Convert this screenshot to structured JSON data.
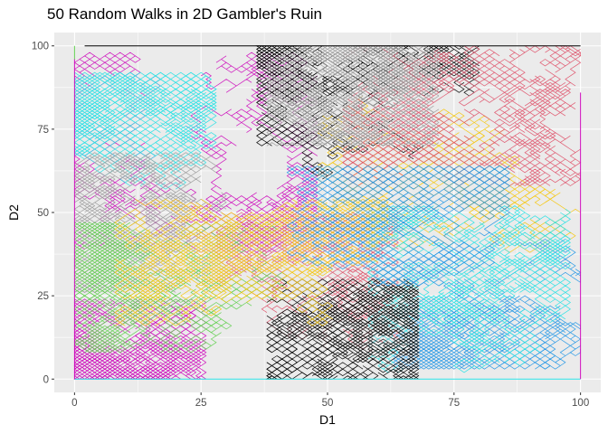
{
  "chart_data": {
    "type": "line",
    "title": "50 Random Walks in 2D Gambler's Ruin",
    "xlabel": "D1",
    "ylabel": "D2",
    "xlim": [
      -4,
      104
    ],
    "ylim": [
      -4,
      104
    ],
    "x_ticks": [
      0,
      25,
      50,
      75,
      100
    ],
    "y_ticks": [
      0,
      25,
      50,
      75,
      100
    ],
    "x_tick_labels": [
      "0",
      "25",
      "50",
      "75",
      "100"
    ],
    "y_tick_labels": [
      "0",
      "25",
      "50",
      "75",
      "100"
    ],
    "grid": true,
    "legend": "none",
    "n_walks": 50,
    "step": 1,
    "boundary": [
      0,
      100
    ],
    "background": "#EBEBEB",
    "gridline_color": "#FFFFFF",
    "walk_colors": [
      "#000000",
      "#DF536B",
      "#61D04F",
      "#2297E6",
      "#28E2E5",
      "#CD0BBC",
      "#F5C710",
      "#9E9E9E"
    ],
    "edge_lines": [
      {
        "color": "#000000",
        "x": [
          2,
          100
        ],
        "y": [
          100,
          100
        ]
      },
      {
        "color": "#28E2E5",
        "x": [
          0,
          100
        ],
        "y": [
          0,
          0
        ]
      },
      {
        "color": "#CD0BBC",
        "x": [
          0,
          0
        ],
        "y": [
          0,
          96
        ]
      },
      {
        "color": "#CD0BBC",
        "x": [
          100,
          100
        ],
        "y": [
          0,
          86
        ]
      },
      {
        "color": "#61D04F",
        "x": [
          0,
          0
        ],
        "y": [
          96,
          100
        ]
      }
    ],
    "walk_regions": [
      {
        "color": "#CD0BBC",
        "x_range": [
          2,
          46
        ],
        "y_range": [
          40,
          96
        ]
      },
      {
        "color": "#000000",
        "x_range": [
          38,
          78
        ],
        "y_range": [
          62,
          100
        ]
      },
      {
        "color": "#28E2E5",
        "x_range": [
          0,
          26
        ],
        "y_range": [
          50,
          90
        ]
      },
      {
        "color": "#9E9E9E",
        "x_range": [
          2,
          28
        ],
        "y_range": [
          28,
          66
        ]
      },
      {
        "color": "#F5C710",
        "x_range": [
          50,
          100
        ],
        "y_range": [
          40,
          85
        ]
      },
      {
        "color": "#2297E6",
        "x_range": [
          65,
          100
        ],
        "y_range": [
          5,
          45
        ]
      },
      {
        "color": "#DF536B",
        "x_range": [
          55,
          100
        ],
        "y_range": [
          60,
          100
        ]
      },
      {
        "color": "#CD0BBC",
        "x_range": [
          1,
          24
        ],
        "y_range": [
          1,
          22
        ]
      },
      {
        "color": "#DF536B",
        "x_range": [
          30,
          62
        ],
        "y_range": [
          10,
          48
        ]
      },
      {
        "color": "#61D04F",
        "x_range": [
          2,
          40
        ],
        "y_range": [
          10,
          45
        ]
      },
      {
        "color": "#28E2E5",
        "x_range": [
          60,
          96
        ],
        "y_range": [
          2,
          50
        ]
      },
      {
        "color": "#000000",
        "x_range": [
          40,
          66
        ],
        "y_range": [
          1,
          28
        ]
      },
      {
        "color": "#F5C710",
        "x_range": [
          10,
          60
        ],
        "y_range": [
          18,
          52
        ]
      },
      {
        "color": "#9E9E9E",
        "x_range": [
          40,
          70
        ],
        "y_range": [
          72,
          100
        ]
      },
      {
        "color": "#2297E6",
        "x_range": [
          44,
          84
        ],
        "y_range": [
          30,
          62
        ]
      }
    ]
  }
}
